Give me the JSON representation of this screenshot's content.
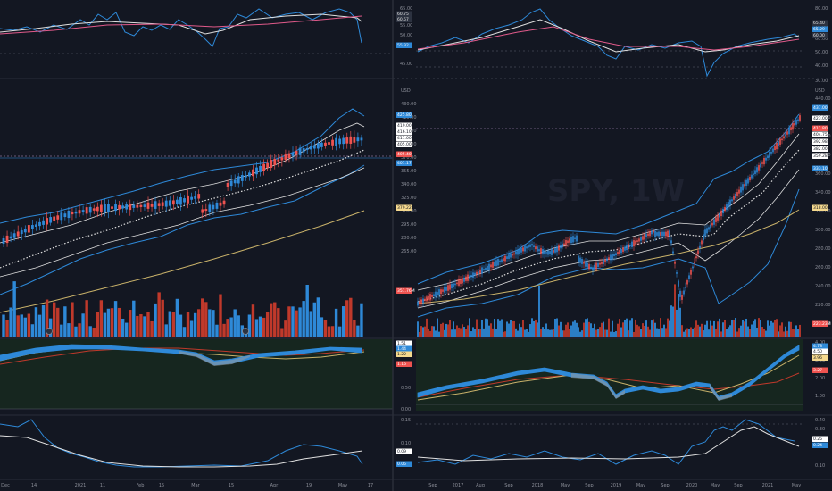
{
  "colors": {
    "background": "#131722",
    "grid": "#1f2433",
    "separator": "#2a2e39",
    "candle_up": "#26a69a",
    "candle_down": "#ef5350",
    "vol_up": "#2e89d8",
    "vol_down": "#c0392b",
    "bollinger": "#2e89d8",
    "ma_white": "#e0e0e0",
    "ma_yellow": "#c9b26a",
    "rsi_blue": "#2e89d8",
    "rsi_red": "#e05a8a",
    "macd_fill_panel": "#16261f",
    "axis_text": "#8c8f99"
  },
  "left_pane": {
    "rsi_axis": [
      "65.00",
      "55.00",
      "50.00",
      "45.00"
    ],
    "rsi_tags": [
      "60.75",
      "60.57",
      "55.92"
    ],
    "price_axis": [
      "USD",
      "430.00",
      "415.00",
      "400.00",
      "385.00",
      "370.00",
      "355.00",
      "340.00",
      "325.00",
      "310.00",
      "295.00",
      "280.00",
      "265.00"
    ],
    "price_tags": [
      "425.80",
      "419.00",
      "416.10",
      "411.00",
      "405.00",
      "405.40",
      "401.17",
      "379.22",
      "351.76M"
    ],
    "osc_axis": [
      "1.00",
      "0.50",
      "0.00"
    ],
    "osc_tags": [
      "1.51",
      "1.44",
      "1.22",
      "1.16"
    ],
    "lower_axis": [
      "0.15",
      "0.10",
      "0.05"
    ],
    "lower_tags": [
      "0.09",
      "0.05"
    ],
    "time_axis": [
      "Dec",
      "14",
      "2021",
      "11",
      "Feb",
      "15",
      "Mar",
      "15",
      "Apr",
      "19",
      "May",
      "17"
    ]
  },
  "right_pane": {
    "watermark": "SPY, 1W",
    "rsi_axis": [
      "80.00",
      "70.00",
      "60.00",
      "50.00",
      "40.00",
      "30.00"
    ],
    "rsi_tags": [
      "65.40",
      "65.29",
      "60.00"
    ],
    "price_axis": [
      "USD",
      "440.00",
      "420.00",
      "400.00",
      "380.00",
      "360.00",
      "340.00",
      "320.00",
      "300.00",
      "280.00",
      "260.00",
      "240.00",
      "220.00",
      "200.00"
    ],
    "price_tags": [
      "437.00",
      "423.00",
      "411.80",
      "404.75",
      "392.98",
      "382.00",
      "359.28",
      "333.10",
      "318.00",
      "223.23M"
    ],
    "osc_axis": [
      "4.00",
      "3.00",
      "2.00",
      "1.00"
    ],
    "osc_tags": [
      "4.78",
      "4.50",
      "3.96",
      "3.27"
    ],
    "lower_axis": [
      "0.40",
      "0.30",
      "0.20",
      "0.10"
    ],
    "lower_tags": [
      "0.25",
      "0.24"
    ],
    "time_axis": [
      "Sep",
      "2017",
      "Aug",
      "Sep",
      "2018",
      "May",
      "Sep",
      "2019",
      "May",
      "Sep",
      "2020",
      "May",
      "Sep",
      "2021",
      "May"
    ]
  }
}
